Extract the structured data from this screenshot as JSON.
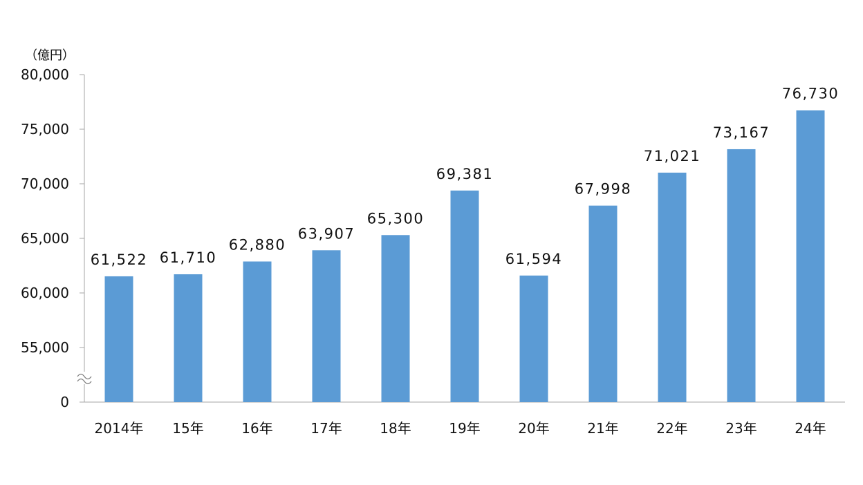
{
  "chart_data": {
    "type": "bar",
    "unit_label": "（億円）",
    "categories": [
      "2014年",
      "15年",
      "16年",
      "17年",
      "18年",
      "19年",
      "20年",
      "21年",
      "22年",
      "23年",
      "24年"
    ],
    "values": [
      61522,
      61710,
      62880,
      63907,
      65300,
      69381,
      61594,
      67998,
      71021,
      73167,
      76730
    ],
    "value_labels": [
      "61,522",
      "61,710",
      "62,880",
      "63,907",
      "65,300",
      "69,381",
      "61,594",
      "67,998",
      "71,021",
      "73,167",
      "76,730"
    ],
    "y_ticks": [
      55000,
      60000,
      65000,
      70000,
      75000,
      80000
    ],
    "y_tick_labels": [
      "55,000",
      "60,000",
      "65,000",
      "70,000",
      "75,000",
      "80,000"
    ],
    "y_zero_label": "0",
    "axis_break": true,
    "ylim": [
      0,
      80000
    ],
    "bar_color": "#5b9bd5",
    "grid": false,
    "legend": "none"
  }
}
